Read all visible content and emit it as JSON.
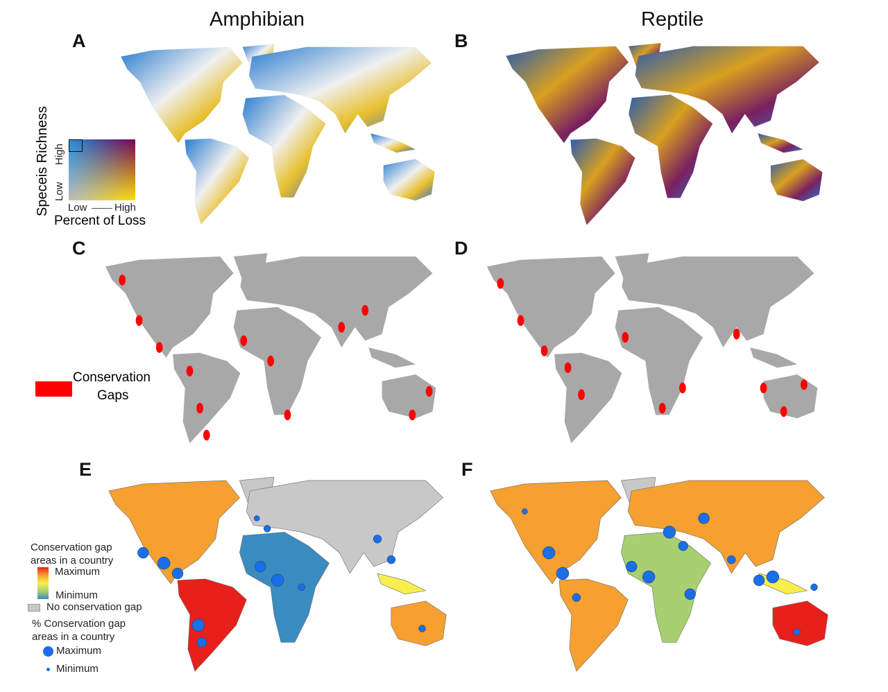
{
  "columns": {
    "left": "Amphibian",
    "right": "Reptile"
  },
  "panels": {
    "a": "A",
    "b": "B",
    "c": "C",
    "d": "D",
    "e": "E",
    "f": "F"
  },
  "bivariate_legend": {
    "y_title": "Speceis Richness",
    "y_low": "Low",
    "y_high": "High",
    "x_title": "Percent of Loss",
    "x_low": "Low",
    "x_high": "High",
    "corner_colors": {
      "low_low": "#bdbdbd",
      "high_low": "#1e90e0",
      "low_high": "#ffe000",
      "high_high": "#7a0050"
    }
  },
  "gap_legend": {
    "label_line1": "Conservation",
    "label_line2": "Gaps",
    "color": "#ff0000"
  },
  "country_legend": {
    "title_line1": "Conservation gap",
    "title_line2": "areas in a country",
    "max": "Maximum",
    "min": "Minimum",
    "no_gap": "No conservation gap",
    "pct_title_line1": "% Conservation gap",
    "pct_title_line2": "areas in a country",
    "dot_max": "Maximum",
    "dot_min": "Minimum",
    "dot_color": "#1a6ee8",
    "no_gap_color": "#c8c8c8",
    "scale_colors": [
      "#e8201c",
      "#f5a030",
      "#f8ee50",
      "#a8d070",
      "#3a8cc0"
    ]
  }
}
